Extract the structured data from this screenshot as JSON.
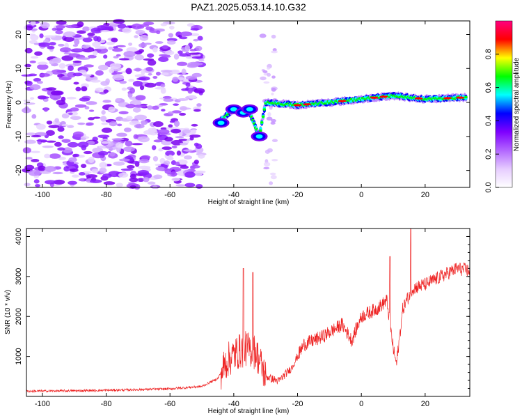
{
  "figure": {
    "title": "PAZ1.2025.053.14.10.G32"
  },
  "chart_data": [
    {
      "type": "heatmap",
      "xlabel": "Height of straight line (km)",
      "ylabel": "Frequency (Hz)",
      "xlim": [
        -105,
        34
      ],
      "ylim": [
        -25,
        24
      ],
      "xticks": [
        -100,
        -80,
        -60,
        -40,
        -20,
        0,
        20
      ],
      "yticks": [
        -20,
        -10,
        0,
        10,
        20
      ],
      "colorbar": {
        "label": "Normalized spectral amplitude",
        "range": [
          0.0,
          1.0
        ],
        "ticks": [
          0.0,
          0.2,
          0.4,
          0.6,
          0.8
        ],
        "colormap": [
          "#ffffff",
          "#e6ccff",
          "#b266ff",
          "#7f00ff",
          "#0000ff",
          "#00ffff",
          "#00ff00",
          "#ffff00",
          "#ff0000",
          "#ff0080"
        ]
      },
      "ridge": {
        "description_points": [
          {
            "x": -45,
            "y": -6
          },
          {
            "x": -40,
            "y": -2
          },
          {
            "x": -35,
            "y": -3
          },
          {
            "x": -32,
            "y": -10
          },
          {
            "x": -30,
            "y": 0
          },
          {
            "x": -20,
            "y": -0.8
          },
          {
            "x": -10,
            "y": 0
          },
          {
            "x": 0,
            "y": 1
          },
          {
            "x": 10,
            "y": 2
          },
          {
            "x": 20,
            "y": 1
          },
          {
            "x": 33,
            "y": 1.5
          }
        ]
      },
      "noise_region_x": [
        -105,
        -50
      ]
    },
    {
      "type": "line",
      "xlabel": "Height of straight line (km)",
      "ylabel": "SNR (10 * v/v)",
      "xlim": [
        -105,
        34
      ],
      "ylim": [
        0,
        4200
      ],
      "xticks": [
        -100,
        -80,
        -60,
        -40,
        -20,
        0,
        20
      ],
      "yticks": [
        1000,
        2000,
        3000,
        4000
      ],
      "series": [
        {
          "color": "#ee2222",
          "control_points": [
            {
              "x": -105,
              "y": 130
            },
            {
              "x": -90,
              "y": 140
            },
            {
              "x": -75,
              "y": 160
            },
            {
              "x": -60,
              "y": 190
            },
            {
              "x": -50,
              "y": 250
            },
            {
              "x": -45,
              "y": 450
            },
            {
              "x": -42,
              "y": 900
            },
            {
              "x": -39,
              "y": 1100
            },
            {
              "x": -36,
              "y": 1200
            },
            {
              "x": -33,
              "y": 1100
            },
            {
              "x": -30,
              "y": 500
            },
            {
              "x": -26,
              "y": 380
            },
            {
              "x": -22,
              "y": 700
            },
            {
              "x": -18,
              "y": 1300
            },
            {
              "x": -12,
              "y": 1500
            },
            {
              "x": -6,
              "y": 1800
            },
            {
              "x": -3,
              "y": 1400
            },
            {
              "x": 0,
              "y": 2000
            },
            {
              "x": 5,
              "y": 2200
            },
            {
              "x": 8,
              "y": 2400
            },
            {
              "x": 10,
              "y": 1200
            },
            {
              "x": 11,
              "y": 800
            },
            {
              "x": 13,
              "y": 2200
            },
            {
              "x": 16,
              "y": 2700
            },
            {
              "x": 20,
              "y": 2800
            },
            {
              "x": 25,
              "y": 3000
            },
            {
              "x": 30,
              "y": 3200
            },
            {
              "x": 34,
              "y": 3150
            }
          ],
          "spikes": [
            {
              "x": -37,
              "y": 3200
            },
            {
              "x": -34,
              "y": 3100
            },
            {
              "x": 9,
              "y": 3500
            },
            {
              "x": 15.5,
              "y": 4200
            }
          ]
        }
      ]
    }
  ]
}
